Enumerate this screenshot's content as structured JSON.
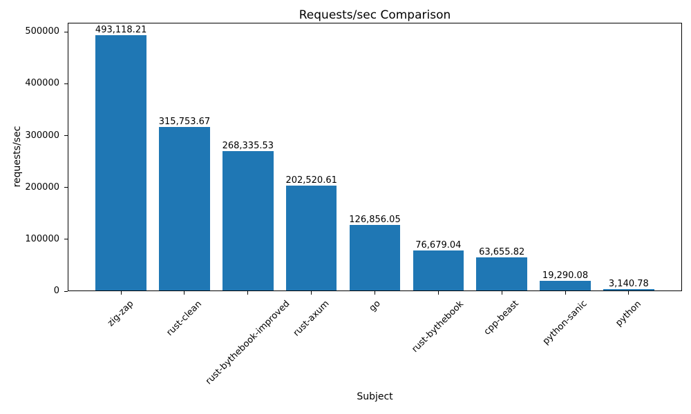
{
  "chart_data": {
    "type": "bar",
    "title": "Requests/sec Comparison",
    "xlabel": "Subject",
    "ylabel": "requests/sec",
    "categories": [
      "zig-zap",
      "rust-clean",
      "rust-bythebook-improved",
      "rust-axum",
      "go",
      "rust-bythebook",
      "cpp-beast",
      "python-sanic",
      "python"
    ],
    "values": [
      493118.21,
      315753.67,
      268335.53,
      202520.61,
      126856.05,
      76679.04,
      63655.82,
      19290.08,
      3140.78
    ],
    "value_labels": [
      "493,118.21",
      "315,753.67",
      "268,335.53",
      "202,520.61",
      "126,856.05",
      "76,679.04",
      "63,655.82",
      "19,290.08",
      "3,140.78"
    ],
    "bar_color": "#1f77b4",
    "text_color": "#000000",
    "ylim": [
      0,
      517774
    ],
    "yticks": [
      0,
      100000,
      200000,
      300000,
      400000,
      500000
    ],
    "ytick_labels": [
      "0",
      "100000",
      "200000",
      "300000",
      "400000",
      "500000"
    ],
    "grid": false,
    "legend": false
  }
}
